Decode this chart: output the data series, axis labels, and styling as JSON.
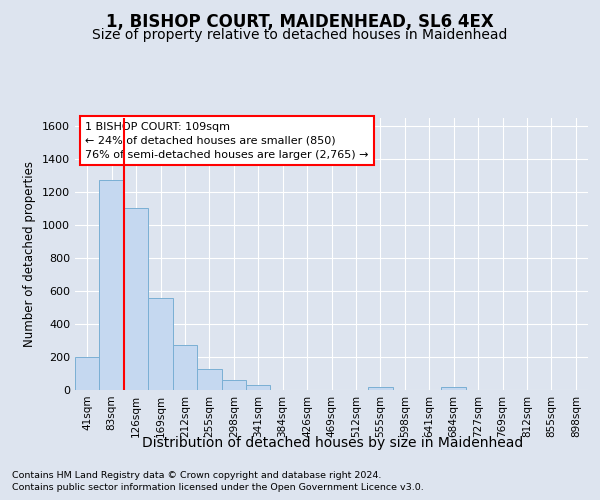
{
  "title": "1, BISHOP COURT, MAIDENHEAD, SL6 4EX",
  "subtitle": "Size of property relative to detached houses in Maidenhead",
  "xlabel": "Distribution of detached houses by size in Maidenhead",
  "ylabel": "Number of detached properties",
  "categories": [
    "41sqm",
    "83sqm",
    "126sqm",
    "169sqm",
    "212sqm",
    "255sqm",
    "298sqm",
    "341sqm",
    "384sqm",
    "426sqm",
    "469sqm",
    "512sqm",
    "555sqm",
    "598sqm",
    "641sqm",
    "684sqm",
    "727sqm",
    "769sqm",
    "812sqm",
    "855sqm",
    "898sqm"
  ],
  "values": [
    200,
    1270,
    1100,
    560,
    270,
    125,
    60,
    30,
    0,
    0,
    0,
    0,
    20,
    0,
    0,
    20,
    0,
    0,
    0,
    0,
    0
  ],
  "bar_color": "#c5d8f0",
  "bar_edge_color": "#7aafd4",
  "red_line_x": 1.5,
  "annotation_line1": "1 BISHOP COURT: 109sqm",
  "annotation_line2": "← 24% of detached houses are smaller (850)",
  "annotation_line3": "76% of semi-detached houses are larger (2,765) →",
  "ylim": [
    0,
    1650
  ],
  "yticks": [
    0,
    200,
    400,
    600,
    800,
    1000,
    1200,
    1400,
    1600
  ],
  "footer1": "Contains HM Land Registry data © Crown copyright and database right 2024.",
  "footer2": "Contains public sector information licensed under the Open Government Licence v3.0.",
  "bg_color": "#dde4ef",
  "plot_bg_color": "#dde4ef",
  "grid_color": "#ffffff",
  "title_fontsize": 12,
  "subtitle_fontsize": 10,
  "xlabel_fontsize": 10
}
